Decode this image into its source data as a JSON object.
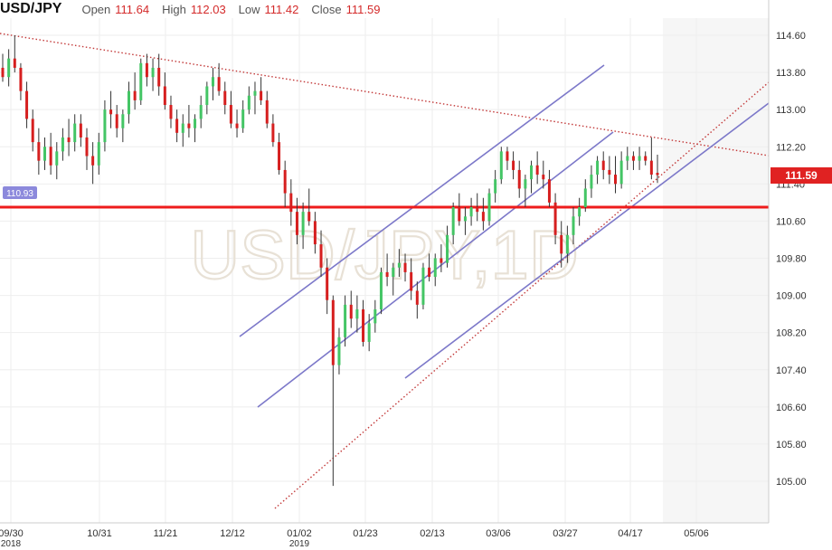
{
  "header": {
    "symbol": "USD/JPY",
    "open_label": "Open",
    "open_value": "111.64",
    "high_label": "High",
    "high_value": "112.03",
    "low_label": "Low",
    "low_value": "111.42",
    "close_label": "Close",
    "close_value": "111.59"
  },
  "chart_data": {
    "type": "candlestick",
    "title": "USD/JPY",
    "watermark": "USD/JPY,1D",
    "ylim": [
      104.2,
      115.0
    ],
    "y_ticks": [
      "114.60",
      "113.80",
      "113.00",
      "112.20",
      "111.40",
      "110.60",
      "109.80",
      "109.00",
      "108.20",
      "107.40",
      "106.60",
      "105.80",
      "105.00"
    ],
    "x_ticks": [
      {
        "label": "09/30",
        "sublabel": "2018"
      },
      {
        "label": "10/31"
      },
      {
        "label": "11/21"
      },
      {
        "label": "12/12"
      },
      {
        "label": "01/02",
        "sublabel": "2019"
      },
      {
        "label": "01/23"
      },
      {
        "label": "02/13"
      },
      {
        "label": "03/06"
      },
      {
        "label": "03/27"
      },
      {
        "label": "04/17"
      },
      {
        "label": "05/06"
      }
    ],
    "last_price": "111.59",
    "horizontal_level": {
      "value": 110.93,
      "label": "110.93"
    },
    "grid": true,
    "candles": [
      [
        113.9,
        114.2,
        113.6,
        113.7
      ],
      [
        113.7,
        114.3,
        113.5,
        114.1
      ],
      [
        114.1,
        114.6,
        113.8,
        113.9
      ],
      [
        113.9,
        114.0,
        113.2,
        113.4
      ],
      [
        113.4,
        113.6,
        112.6,
        112.8
      ],
      [
        112.8,
        113.0,
        112.1,
        112.3
      ],
      [
        112.3,
        112.6,
        111.6,
        111.9
      ],
      [
        111.9,
        112.4,
        111.7,
        112.2
      ],
      [
        112.2,
        112.5,
        111.6,
        111.8
      ],
      [
        111.8,
        112.3,
        111.5,
        112.1
      ],
      [
        112.1,
        112.6,
        111.9,
        112.4
      ],
      [
        112.4,
        112.8,
        112.0,
        112.3
      ],
      [
        112.3,
        112.9,
        112.1,
        112.7
      ],
      [
        112.7,
        112.9,
        112.2,
        112.4
      ],
      [
        112.4,
        112.6,
        111.7,
        112.0
      ],
      [
        112.0,
        112.3,
        111.4,
        111.8
      ],
      [
        111.8,
        112.5,
        111.6,
        112.3
      ],
      [
        112.3,
        113.2,
        112.1,
        113.0
      ],
      [
        113.0,
        113.4,
        112.6,
        112.9
      ],
      [
        112.9,
        113.1,
        112.4,
        112.6
      ],
      [
        112.6,
        113.0,
        112.3,
        112.9
      ],
      [
        112.9,
        113.6,
        112.7,
        113.4
      ],
      [
        113.4,
        113.8,
        113.0,
        113.2
      ],
      [
        113.2,
        114.1,
        113.1,
        114.0
      ],
      [
        114.0,
        114.2,
        113.5,
        113.7
      ],
      [
        113.7,
        114.1,
        113.4,
        113.9
      ],
      [
        113.9,
        114.2,
        113.3,
        113.5
      ],
      [
        113.5,
        113.8,
        113.0,
        113.1
      ],
      [
        113.1,
        113.3,
        112.6,
        112.8
      ],
      [
        112.8,
        113.0,
        112.3,
        112.5
      ],
      [
        112.5,
        112.9,
        112.2,
        112.7
      ],
      [
        112.7,
        113.1,
        112.4,
        112.6
      ],
      [
        112.6,
        112.9,
        112.3,
        112.8
      ],
      [
        112.8,
        113.3,
        112.6,
        113.1
      ],
      [
        113.1,
        113.6,
        112.9,
        113.5
      ],
      [
        113.5,
        113.9,
        113.2,
        113.7
      ],
      [
        113.7,
        114.0,
        113.3,
        113.4
      ],
      [
        113.4,
        113.6,
        112.9,
        113.1
      ],
      [
        113.1,
        113.4,
        112.6,
        112.7
      ],
      [
        112.7,
        113.0,
        112.4,
        112.6
      ],
      [
        112.6,
        113.2,
        112.5,
        113.0
      ],
      [
        113.0,
        113.5,
        112.9,
        113.3
      ],
      [
        113.3,
        113.6,
        112.9,
        113.4
      ],
      [
        113.4,
        113.7,
        113.1,
        113.2
      ],
      [
        113.2,
        113.4,
        112.6,
        112.7
      ],
      [
        112.7,
        112.9,
        112.2,
        112.3
      ],
      [
        112.3,
        112.5,
        111.6,
        111.7
      ],
      [
        111.7,
        111.9,
        110.9,
        111.2
      ],
      [
        111.2,
        111.5,
        110.5,
        110.8
      ],
      [
        110.8,
        111.1,
        110.1,
        110.3
      ],
      [
        110.3,
        111.0,
        110.0,
        110.8
      ],
      [
        110.8,
        111.3,
        110.5,
        110.6
      ],
      [
        110.6,
        110.8,
        109.9,
        110.1
      ],
      [
        110.1,
        110.4,
        109.4,
        109.6
      ],
      [
        109.6,
        109.8,
        108.6,
        108.9
      ],
      [
        108.9,
        109.0,
        104.9,
        107.5
      ],
      [
        107.5,
        108.3,
        107.3,
        108.1
      ],
      [
        108.1,
        109.0,
        107.9,
        108.8
      ],
      [
        108.8,
        109.1,
        108.3,
        108.5
      ],
      [
        108.5,
        109.0,
        108.2,
        108.7
      ],
      [
        108.7,
        108.9,
        107.9,
        108.0
      ],
      [
        108.0,
        108.6,
        107.8,
        108.4
      ],
      [
        108.4,
        108.9,
        108.2,
        108.7
      ],
      [
        108.7,
        109.6,
        108.6,
        109.5
      ],
      [
        109.5,
        109.9,
        109.2,
        109.4
      ],
      [
        109.4,
        109.7,
        109.0,
        109.6
      ],
      [
        109.6,
        110.0,
        109.4,
        109.7
      ],
      [
        109.7,
        109.9,
        109.3,
        109.5
      ],
      [
        109.5,
        109.8,
        108.9,
        109.1
      ],
      [
        109.1,
        109.3,
        108.5,
        108.8
      ],
      [
        108.8,
        109.7,
        108.7,
        109.6
      ],
      [
        109.6,
        109.9,
        109.3,
        109.4
      ],
      [
        109.4,
        109.9,
        109.2,
        109.8
      ],
      [
        109.8,
        110.1,
        109.5,
        109.7
      ],
      [
        109.7,
        110.5,
        109.6,
        110.3
      ],
      [
        110.3,
        111.0,
        110.1,
        110.9
      ],
      [
        110.9,
        111.2,
        110.5,
        110.6
      ],
      [
        110.6,
        110.9,
        110.3,
        110.7
      ],
      [
        110.7,
        111.1,
        110.5,
        110.9
      ],
      [
        110.9,
        111.2,
        110.6,
        110.8
      ],
      [
        110.8,
        111.1,
        110.4,
        110.6
      ],
      [
        110.6,
        111.3,
        110.5,
        111.2
      ],
      [
        111.2,
        111.7,
        111.0,
        111.5
      ],
      [
        111.5,
        112.2,
        111.4,
        112.1
      ],
      [
        112.1,
        112.2,
        111.7,
        111.9
      ],
      [
        111.9,
        112.1,
        111.5,
        111.7
      ],
      [
        111.7,
        111.9,
        111.1,
        111.3
      ],
      [
        111.3,
        111.6,
        110.9,
        111.5
      ],
      [
        111.5,
        111.9,
        111.2,
        111.8
      ],
      [
        111.8,
        112.1,
        111.4,
        111.6
      ],
      [
        111.6,
        111.9,
        111.3,
        111.5
      ],
      [
        111.5,
        111.7,
        110.9,
        111.0
      ],
      [
        111.0,
        111.2,
        110.1,
        110.3
      ],
      [
        110.3,
        110.6,
        109.6,
        109.9
      ],
      [
        109.9,
        110.5,
        109.7,
        110.3
      ],
      [
        110.3,
        110.9,
        110.1,
        110.7
      ],
      [
        110.7,
        111.1,
        110.5,
        110.9
      ],
      [
        110.9,
        111.5,
        110.8,
        111.3
      ],
      [
        111.3,
        111.8,
        111.1,
        111.6
      ],
      [
        111.6,
        112.0,
        111.4,
        111.9
      ],
      [
        111.9,
        112.1,
        111.5,
        111.7
      ],
      [
        111.7,
        112.0,
        111.4,
        111.6
      ],
      [
        111.6,
        112.0,
        111.2,
        111.4
      ],
      [
        111.4,
        112.1,
        111.3,
        111.9
      ],
      [
        111.9,
        112.2,
        111.7,
        112.0
      ],
      [
        112.0,
        112.1,
        111.7,
        111.9
      ],
      [
        111.9,
        112.2,
        111.7,
        112.0
      ],
      [
        112.0,
        112.1,
        111.8,
        111.9
      ],
      [
        111.9,
        112.4,
        111.5,
        111.6
      ],
      [
        111.64,
        112.03,
        111.42,
        111.59
      ]
    ]
  }
}
